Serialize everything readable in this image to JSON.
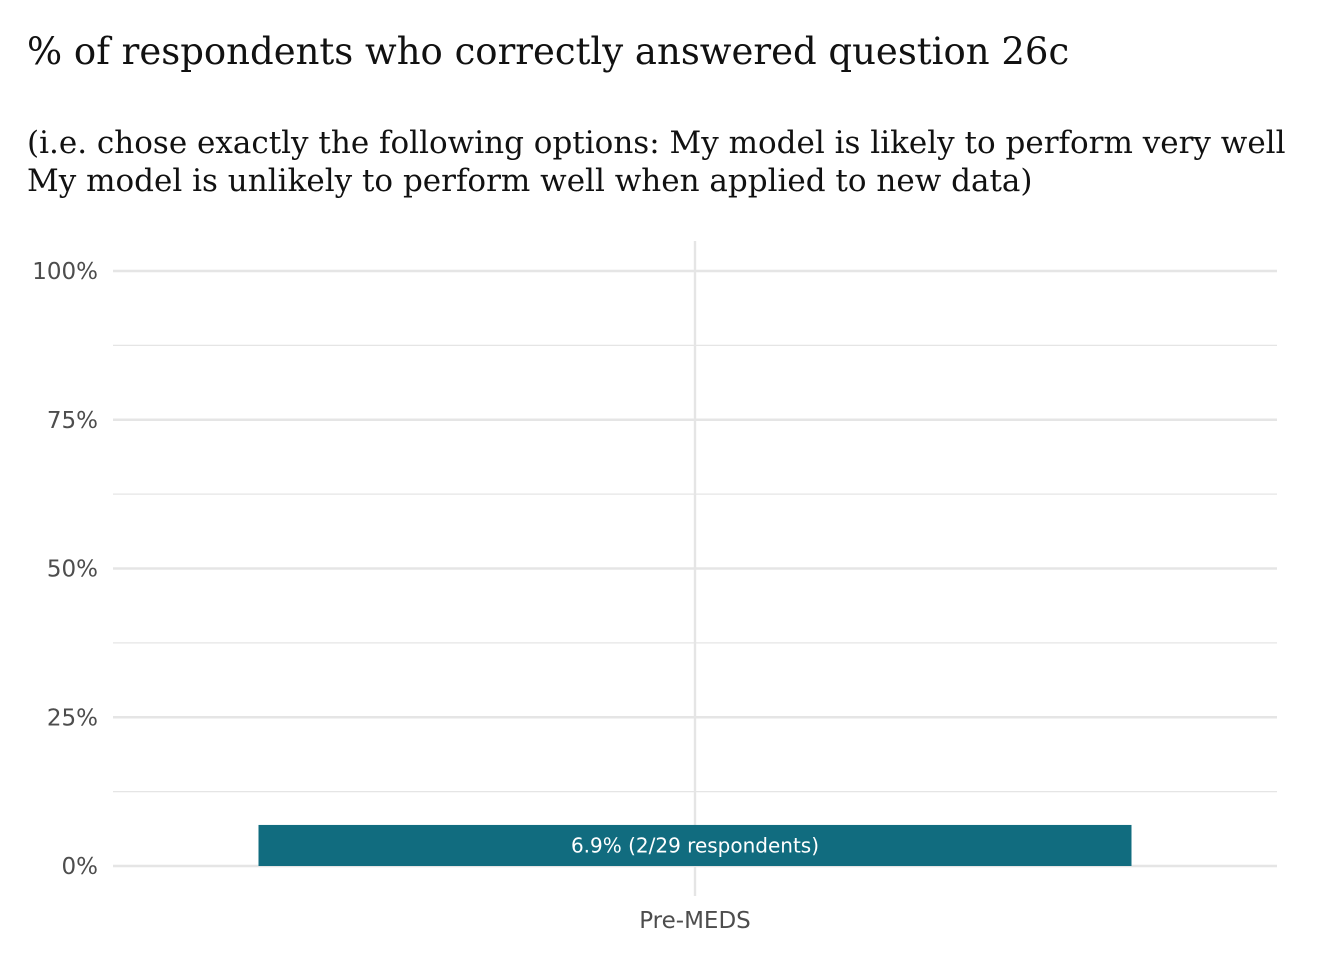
{
  "chart_data": {
    "type": "bar",
    "title": "% of respondents who correctly answered question 26c",
    "subtitle_lines": [
      "(i.e. chose exactly the following options: My model is likely to perform very well",
      "My model is unlikely to perform well when applied to new data)"
    ],
    "categories": [
      "Pre-MEDS"
    ],
    "values": [
      6.9
    ],
    "data_labels": [
      "6.9% (2/29 respondents)"
    ],
    "ylim": [
      0,
      100
    ],
    "yticks": [
      0,
      25,
      50,
      75,
      100
    ],
    "ytick_labels": [
      "0%",
      "25%",
      "50%",
      "75%",
      "100%"
    ],
    "grid": true,
    "colors": {
      "bar": "#116c7f",
      "grid": "#e5e5e5"
    }
  }
}
